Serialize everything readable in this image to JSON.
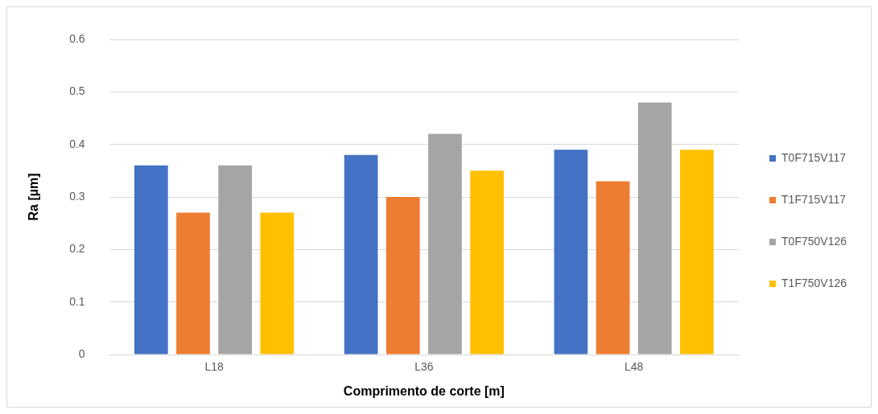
{
  "chart_data": {
    "type": "bar",
    "xlabel": "Comprimento de corte [m]",
    "ylabel": "Ra [µm]",
    "categories": [
      "L18",
      "L36",
      "L48"
    ],
    "series": [
      {
        "name": "T0F715V117",
        "color": "#4472c4",
        "values": [
          0.36,
          0.38,
          0.39
        ]
      },
      {
        "name": "T1F715V117",
        "color": "#ed7d31",
        "values": [
          0.27,
          0.3,
          0.33
        ]
      },
      {
        "name": "T0F750V126",
        "color": "#a5a5a5",
        "values": [
          0.36,
          0.42,
          0.48
        ]
      },
      {
        "name": "T1F750V126",
        "color": "#ffc000",
        "values": [
          0.27,
          0.35,
          0.39
        ]
      }
    ],
    "ylim": [
      0,
      0.6
    ],
    "yticks": [
      0,
      0.1,
      0.2,
      0.3,
      0.4,
      0.5,
      0.6
    ],
    "grid": "y",
    "legend": "right"
  }
}
